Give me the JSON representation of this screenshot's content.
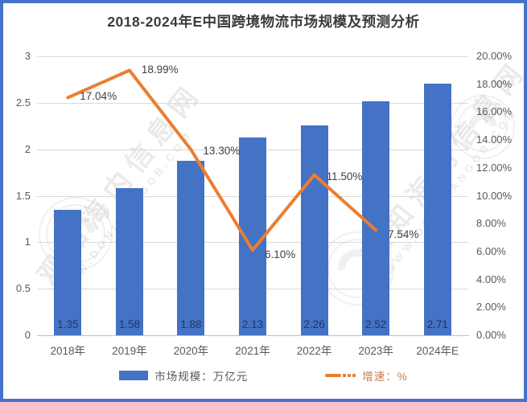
{
  "title": "2018-2024年E中国跨境物流市场规模及预测分析",
  "watermark": {
    "site_name": "观知海内信息网",
    "site_url": "WWW.DONGFANGOB.COM"
  },
  "legend": {
    "bar_label": "市场规模：万亿元",
    "line_label": "增速：%"
  },
  "colors": {
    "bar": "#4472c4",
    "line": "#ed7d31",
    "frame_border": "#4673c8",
    "gridline": "#d9d9d9",
    "axis_text": "#595959",
    "bar_value_text": "#1f3864",
    "title_text": "#3b3b3b"
  },
  "chart_data": {
    "type": "bar",
    "subtype": "combo-bar-line",
    "title": "2018-2024年E中国跨境物流市场规模及预测分析",
    "categories": [
      "2018年",
      "2019年",
      "2020年",
      "2021年",
      "2022年",
      "2023年",
      "2024年E"
    ],
    "series": [
      {
        "name": "市场规模：万亿元",
        "type": "bar",
        "axis": "left",
        "values": [
          1.35,
          1.58,
          1.88,
          2.13,
          2.26,
          2.52,
          2.71
        ],
        "labels": [
          "1.35",
          "1.58",
          "1.88",
          "2.13",
          "2.26",
          "2.52",
          "2.71"
        ]
      },
      {
        "name": "增速：%",
        "type": "line",
        "axis": "right",
        "values": [
          17.04,
          18.99,
          13.3,
          6.1,
          11.5,
          7.54
        ],
        "labels": [
          "17.04%",
          "18.99%",
          "13.30%",
          "6.10%",
          "11.50%",
          "7.54%"
        ]
      }
    ],
    "left_axis": {
      "min": 0,
      "max": 3,
      "step": 0.5,
      "ticks": [
        "0",
        "0.5",
        "1",
        "1.5",
        "2",
        "2.5",
        "3"
      ]
    },
    "right_axis": {
      "min": 0,
      "max": 20,
      "step": 2,
      "ticks": [
        "0.00%",
        "2.00%",
        "4.00%",
        "6.00%",
        "8.00%",
        "10.00%",
        "12.00%",
        "14.00%",
        "16.00%",
        "18.00%",
        "20.00%"
      ]
    },
    "grid": true,
    "legend_position": "bottom",
    "xlabel": "",
    "ylabel_left": "万亿元",
    "ylabel_right": "%"
  }
}
